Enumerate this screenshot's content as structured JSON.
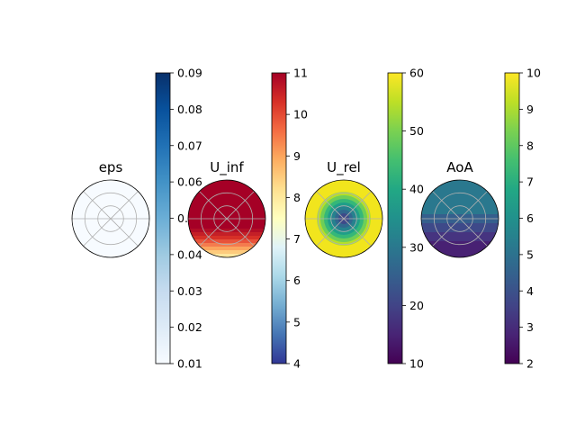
{
  "chart_data": [
    {
      "type": "heatmap",
      "subtype": "polar",
      "title": "eps",
      "colormap": "Blues",
      "field_description": "uniform",
      "field_value": 0.01,
      "colorbar": {
        "min": 0.01,
        "max": 0.09,
        "ticks": [
          "0.01",
          "0.02",
          "0.03",
          "0.04",
          "0.05",
          "0.06",
          "0.07",
          "0.08",
          "0.09"
        ]
      }
    },
    {
      "type": "heatmap",
      "subtype": "polar",
      "title": "U_inf",
      "colormap": "RdYlBu_r",
      "field_description": "high everywhere, decreasing toward bottom",
      "field_value": 11,
      "field_bottom_value": 7,
      "colorbar": {
        "min": 4,
        "max": 11,
        "ticks": [
          "4",
          "5",
          "6",
          "7",
          "8",
          "9",
          "10",
          "11"
        ]
      }
    },
    {
      "type": "heatmap",
      "subtype": "polar",
      "title": "U_rel",
      "colormap": "viridis",
      "field_description": "radial rings increasing outward",
      "ring_values": [
        22,
        32,
        40,
        48,
        54,
        58,
        60
      ],
      "colorbar": {
        "min": 10,
        "max": 60,
        "ticks": [
          "10",
          "20",
          "30",
          "40",
          "50",
          "60"
        ]
      }
    },
    {
      "type": "heatmap",
      "subtype": "polar",
      "title": "AoA",
      "colormap": "viridis",
      "field_description": "higher on top, lower toward bottom",
      "field_value": 5.5,
      "field_bottom_value": 2.2,
      "colorbar": {
        "min": 2,
        "max": 10,
        "ticks": [
          "2",
          "3",
          "4",
          "5",
          "6",
          "7",
          "8",
          "9",
          "10"
        ]
      }
    }
  ]
}
